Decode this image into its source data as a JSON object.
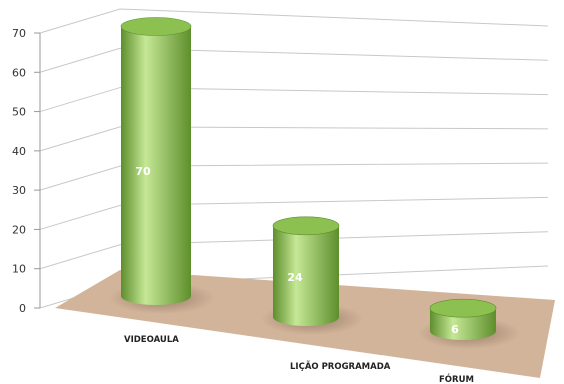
{
  "chart_data": {
    "type": "bar",
    "style": "3d-cylinder",
    "categories": [
      "VIDEOAULA",
      "LIÇÃO PROGRAMADA",
      "FÓRUM"
    ],
    "values": [
      70,
      24,
      6
    ],
    "data_labels": [
      "70",
      "24",
      "6"
    ],
    "ylim": [
      0,
      70
    ],
    "yticks": [
      0,
      10,
      20,
      30,
      40,
      50,
      60,
      70
    ],
    "grid": true,
    "legend": "none",
    "colors": {
      "bar": "#8cc152",
      "bar_dark": "#5e8e2c",
      "bar_light": "#c5e896",
      "floor": "#d2b49a",
      "grid": "#c8c8c8"
    }
  }
}
